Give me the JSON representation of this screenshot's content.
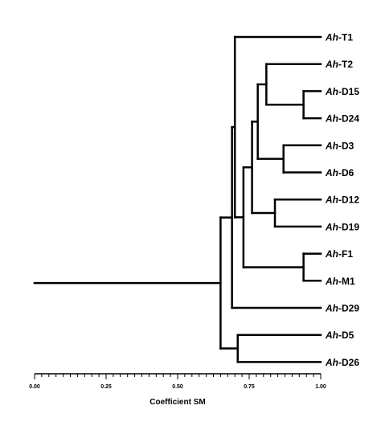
{
  "chart_data": {
    "type": "dendrogram",
    "xlabel": "Coefficient SM",
    "xlim": [
      0.0,
      1.0
    ],
    "axis_ticks": [
      "0.00",
      "0.25",
      "0.50",
      "0.75",
      "1.00"
    ],
    "leaves": [
      {
        "id": "T1",
        "prefix": "Ah",
        "suffix": "-T1"
      },
      {
        "id": "T2",
        "prefix": "Ah",
        "suffix": "-T2"
      },
      {
        "id": "D15",
        "prefix": "Ah",
        "suffix": "-D15"
      },
      {
        "id": "D24",
        "prefix": "Ah",
        "suffix": "-D24"
      },
      {
        "id": "D3",
        "prefix": "Ah",
        "suffix": "-D3"
      },
      {
        "id": "D6",
        "prefix": "Ah",
        "suffix": "-D6"
      },
      {
        "id": "D12",
        "prefix": "Ah",
        "suffix": "-D12"
      },
      {
        "id": "D19",
        "prefix": "Ah",
        "suffix": "-D19"
      },
      {
        "id": "F1",
        "prefix": "Ah",
        "suffix": "-F1"
      },
      {
        "id": "M1",
        "prefix": "Ah",
        "suffix": "-M1"
      },
      {
        "id": "D29",
        "prefix": "Ah",
        "suffix": "-D29"
      },
      {
        "id": "D5",
        "prefix": "Ah",
        "suffix": "-D5"
      },
      {
        "id": "D26",
        "prefix": "Ah",
        "suffix": "-D26"
      }
    ],
    "merges": [
      {
        "id": "n1",
        "children": [
          "D15",
          "D24"
        ],
        "height": 0.94
      },
      {
        "id": "n2",
        "children": [
          "F1",
          "M1"
        ],
        "height": 0.94
      },
      {
        "id": "n3",
        "children": [
          "D3",
          "D6"
        ],
        "height": 0.87
      },
      {
        "id": "n4",
        "children": [
          "D12",
          "D19"
        ],
        "height": 0.84
      },
      {
        "id": "n5",
        "children": [
          "T2",
          "n1"
        ],
        "height": 0.81
      },
      {
        "id": "n6",
        "children": [
          "n5",
          "n3"
        ],
        "height": 0.78
      },
      {
        "id": "n7",
        "children": [
          "n6",
          "n4"
        ],
        "height": 0.76
      },
      {
        "id": "n8",
        "children": [
          "n7",
          "n2"
        ],
        "height": 0.73
      },
      {
        "id": "n9",
        "children": [
          "D5",
          "D26"
        ],
        "height": 0.71
      },
      {
        "id": "n10",
        "children": [
          "T1",
          "n8"
        ],
        "height": 0.7
      },
      {
        "id": "n11",
        "children": [
          "n10",
          "D29"
        ],
        "height": 0.69
      },
      {
        "id": "n12",
        "children": [
          "n11",
          "n9"
        ],
        "height": 0.65
      },
      {
        "id": "root",
        "children": [
          "n12"
        ],
        "height": 0.0
      }
    ]
  }
}
